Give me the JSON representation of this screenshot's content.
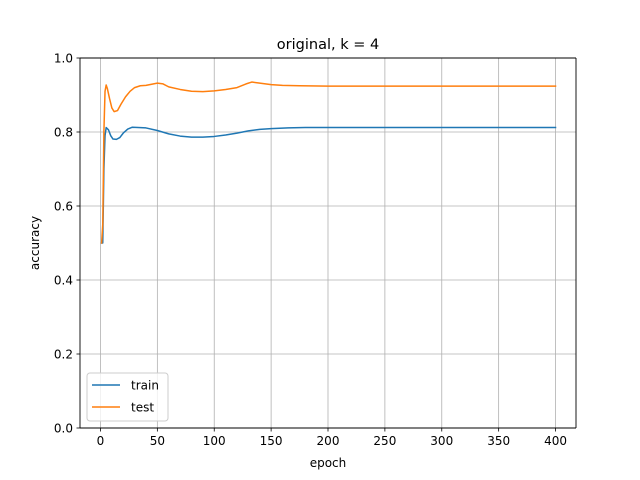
{
  "chart_data": {
    "type": "line",
    "title": "original, k = 4",
    "xlabel": "epoch",
    "ylabel": "accuracy",
    "xlim": [
      -18,
      418
    ],
    "ylim": [
      0.0,
      1.0
    ],
    "xticks": [
      0,
      50,
      100,
      150,
      200,
      250,
      300,
      350,
      400
    ],
    "yticks": [
      0.0,
      0.2,
      0.4,
      0.6,
      0.8,
      1.0
    ],
    "xtick_labels": [
      "0",
      "50",
      "100",
      "150",
      "200",
      "250",
      "300",
      "350",
      "400"
    ],
    "ytick_labels": [
      "0.0",
      "0.2",
      "0.4",
      "0.6",
      "0.8",
      "1.0"
    ],
    "grid": true,
    "legend_position": "lower-left",
    "series": [
      {
        "name": "train",
        "color": "#1f77b4",
        "points": [
          [
            1,
            0.5
          ],
          [
            2,
            0.5
          ],
          [
            3,
            0.7
          ],
          [
            4,
            0.79
          ],
          [
            5,
            0.812
          ],
          [
            7,
            0.806
          ],
          [
            9,
            0.79
          ],
          [
            11,
            0.781
          ],
          [
            14,
            0.78
          ],
          [
            17,
            0.785
          ],
          [
            20,
            0.797
          ],
          [
            24,
            0.808
          ],
          [
            28,
            0.813
          ],
          [
            33,
            0.812
          ],
          [
            40,
            0.811
          ],
          [
            50,
            0.804
          ],
          [
            60,
            0.795
          ],
          [
            70,
            0.789
          ],
          [
            80,
            0.786
          ],
          [
            90,
            0.786
          ],
          [
            100,
            0.788
          ],
          [
            110,
            0.792
          ],
          [
            120,
            0.797
          ],
          [
            130,
            0.803
          ],
          [
            140,
            0.807
          ],
          [
            150,
            0.809
          ],
          [
            165,
            0.811
          ],
          [
            180,
            0.812
          ],
          [
            200,
            0.812
          ],
          [
            250,
            0.812
          ],
          [
            300,
            0.812
          ],
          [
            350,
            0.812
          ],
          [
            400,
            0.812
          ]
        ]
      },
      {
        "name": "test",
        "color": "#ff7f0e",
        "points": [
          [
            1,
            0.5
          ],
          [
            2,
            0.55
          ],
          [
            3,
            0.8
          ],
          [
            4,
            0.91
          ],
          [
            5,
            0.927
          ],
          [
            6,
            0.918
          ],
          [
            8,
            0.89
          ],
          [
            10,
            0.865
          ],
          [
            12,
            0.855
          ],
          [
            15,
            0.858
          ],
          [
            18,
            0.875
          ],
          [
            22,
            0.895
          ],
          [
            26,
            0.91
          ],
          [
            30,
            0.92
          ],
          [
            35,
            0.925
          ],
          [
            40,
            0.926
          ],
          [
            45,
            0.929
          ],
          [
            50,
            0.932
          ],
          [
            55,
            0.93
          ],
          [
            60,
            0.922
          ],
          [
            70,
            0.915
          ],
          [
            80,
            0.91
          ],
          [
            90,
            0.909
          ],
          [
            100,
            0.911
          ],
          [
            110,
            0.915
          ],
          [
            120,
            0.92
          ],
          [
            128,
            0.93
          ],
          [
            133,
            0.935
          ],
          [
            140,
            0.932
          ],
          [
            150,
            0.928
          ],
          [
            160,
            0.926
          ],
          [
            175,
            0.925
          ],
          [
            200,
            0.924
          ],
          [
            250,
            0.924
          ],
          [
            300,
            0.924
          ],
          [
            350,
            0.924
          ],
          [
            400,
            0.924
          ]
        ]
      }
    ]
  }
}
